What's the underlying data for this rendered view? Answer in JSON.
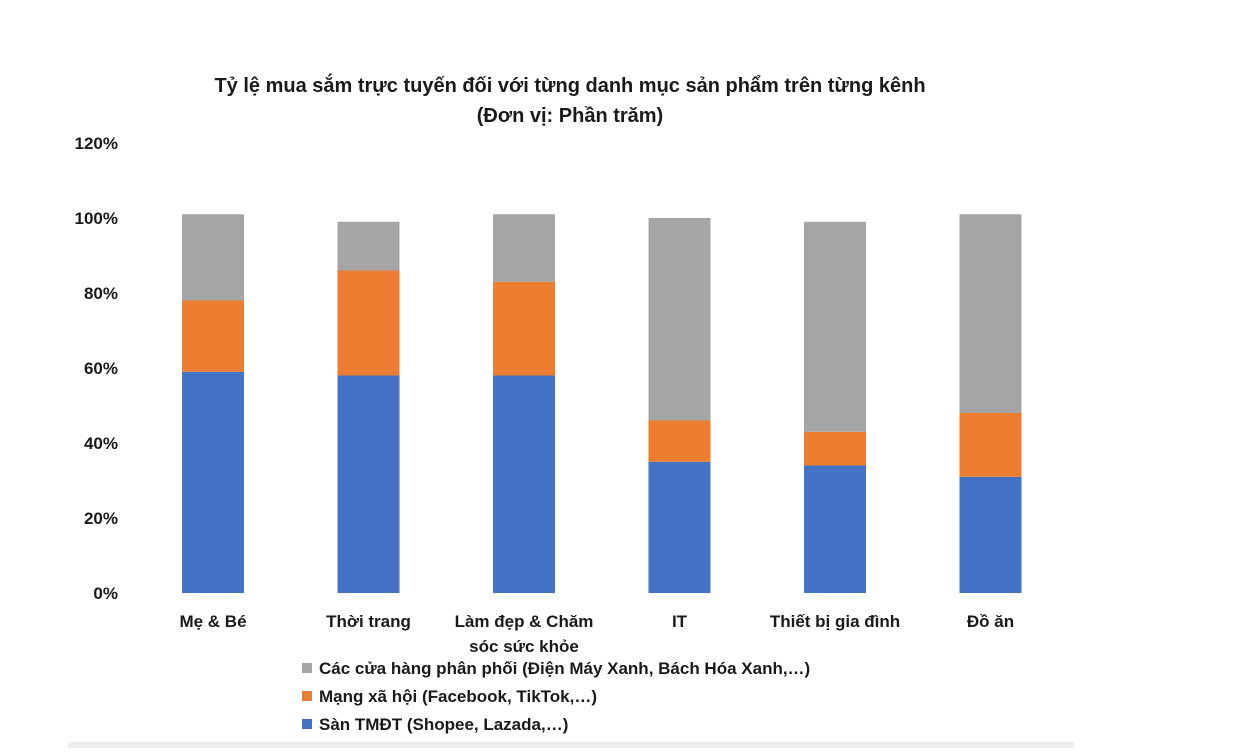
{
  "chart_data": {
    "type": "bar",
    "stacked": true,
    "title": "Tỷ lệ mua sắm trực tuyến đối với từng danh mục sản phẩm trên từng kênh",
    "subtitle": "(Đơn vị: Phần trăm)",
    "xlabel": "",
    "ylabel": "",
    "ylim": [
      0,
      120
    ],
    "yticks": [
      "0%",
      "20%",
      "40%",
      "60%",
      "80%",
      "100%",
      "120%"
    ],
    "grid": false,
    "legend_position": "bottom-left",
    "categories": [
      [
        "Mẹ & Bé"
      ],
      [
        "Thời trang"
      ],
      [
        "Làm đẹp & Chăm",
        "sóc sức khỏe"
      ],
      [
        "IT"
      ],
      [
        "Thiết bị gia đình"
      ],
      [
        "Đồ ăn"
      ]
    ],
    "series": [
      {
        "name": "Sàn TMĐT (Shopee, Lazada,…)",
        "color": "#4472C4",
        "values": [
          59,
          58,
          58,
          35,
          34,
          31
        ]
      },
      {
        "name": "Mạng xã hội (Facebook, TikTok,…)",
        "color": "#ED7D31",
        "values": [
          19,
          28,
          25,
          11,
          9,
          17
        ]
      },
      {
        "name": "Các cửa hàng phân phối (Điện Máy Xanh, Bách Hóa Xanh,…)",
        "color": "#A5A5A5",
        "values": [
          23,
          13,
          18,
          54,
          56,
          53
        ]
      }
    ],
    "legend_order": [
      2,
      1,
      0
    ]
  }
}
